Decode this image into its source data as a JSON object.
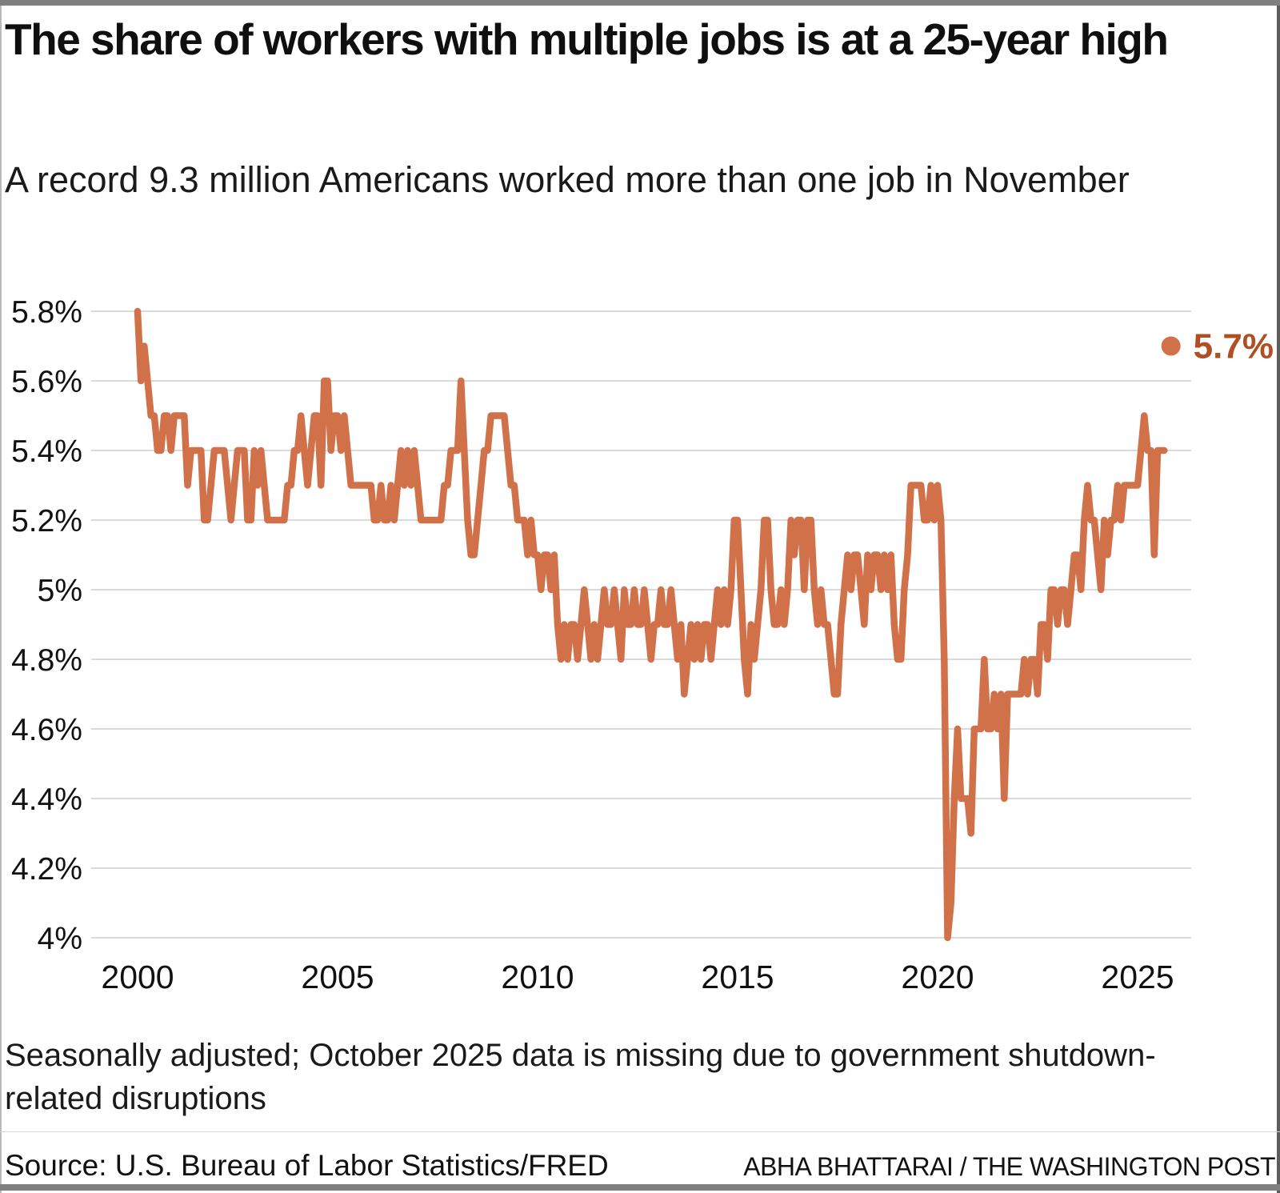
{
  "header": {
    "title": "The share of workers with multiple jobs is at a 25-year high",
    "subtitle": "A record 9.3 million Americans worked more than one job in November"
  },
  "notes": {
    "footnote": "Seasonally adjusted; October 2025 data is missing due to government shutdown-related disruptions",
    "source": "Source: U.S. Bureau of Labor Statistics/FRED",
    "credit": "ABHA BHATTARAI / THE WASHINGTON POST"
  },
  "chart_data": {
    "type": "line",
    "series_name": "Multiple jobholders as a share of employed workers",
    "unit": "percent",
    "frequency": "monthly",
    "start": "2000-01",
    "end": "2025-11",
    "missing_months": [
      "2025-10"
    ],
    "grid": true,
    "legend_position": "none",
    "x_tick_years": [
      2000,
      2005,
      2010,
      2015,
      2020,
      2025
    ],
    "y_tick_values": [
      5.8,
      5.6,
      5.4,
      5.2,
      5.0,
      4.8,
      4.6,
      4.4,
      4.2,
      4.0
    ],
    "y_tick_labels": [
      "5.8%",
      "5.6%",
      "5.4%",
      "5.2%",
      "5%",
      "4.8%",
      "4.6%",
      "4.4%",
      "4.2%",
      "4%"
    ],
    "ylim": [
      4.0,
      5.8
    ],
    "line_color": "#D1714A",
    "grid_color": "#dadada",
    "axis_text_color": "#111111",
    "end_point": {
      "date": "2025-11",
      "value": 5.7,
      "label": "5.7%",
      "label_color": "#B04F22"
    },
    "values": [
      5.8,
      5.6,
      5.7,
      5.6,
      5.5,
      5.5,
      5.4,
      5.4,
      5.5,
      5.5,
      5.4,
      5.5,
      5.5,
      5.5,
      5.5,
      5.3,
      5.4,
      5.4,
      5.4,
      5.4,
      5.2,
      5.2,
      5.3,
      5.4,
      5.4,
      5.4,
      5.4,
      5.3,
      5.2,
      5.3,
      5.4,
      5.4,
      5.4,
      5.2,
      5.2,
      5.4,
      5.3,
      5.4,
      5.3,
      5.2,
      5.2,
      5.2,
      5.2,
      5.2,
      5.2,
      5.3,
      5.3,
      5.4,
      5.4,
      5.5,
      5.4,
      5.3,
      5.4,
      5.5,
      5.5,
      5.3,
      5.6,
      5.6,
      5.4,
      5.5,
      5.5,
      5.4,
      5.5,
      5.4,
      5.3,
      5.3,
      5.3,
      5.3,
      5.3,
      5.3,
      5.3,
      5.2,
      5.2,
      5.3,
      5.2,
      5.2,
      5.3,
      5.2,
      5.3,
      5.4,
      5.3,
      5.4,
      5.3,
      5.4,
      5.3,
      5.2,
      5.2,
      5.2,
      5.2,
      5.2,
      5.2,
      5.2,
      5.3,
      5.3,
      5.4,
      5.4,
      5.4,
      5.6,
      5.4,
      5.2,
      5.1,
      5.1,
      5.2,
      5.3,
      5.4,
      5.4,
      5.5,
      5.5,
      5.5,
      5.5,
      5.5,
      5.4,
      5.3,
      5.3,
      5.2,
      5.2,
      5.2,
      5.1,
      5.2,
      5.1,
      5.1,
      5.0,
      5.1,
      5.1,
      5.0,
      5.1,
      4.9,
      4.8,
      4.9,
      4.8,
      4.9,
      4.9,
      4.8,
      4.9,
      5.0,
      4.9,
      4.8,
      4.9,
      4.8,
      4.9,
      5.0,
      4.9,
      4.9,
      5.0,
      4.9,
      4.8,
      5.0,
      4.9,
      4.9,
      5.0,
      4.9,
      4.9,
      5.0,
      4.9,
      4.8,
      4.9,
      4.9,
      5.0,
      4.9,
      4.9,
      5.0,
      4.9,
      4.8,
      4.9,
      4.7,
      4.8,
      4.9,
      4.8,
      4.9,
      4.8,
      4.9,
      4.9,
      4.8,
      4.9,
      5.0,
      4.9,
      5.0,
      4.9,
      5.0,
      5.2,
      5.2,
      5.0,
      4.8,
      4.7,
      4.9,
      4.8,
      4.9,
      5.0,
      5.2,
      5.2,
      5.0,
      4.9,
      4.9,
      5.0,
      4.9,
      5.0,
      5.2,
      5.1,
      5.2,
      5.2,
      5.0,
      5.2,
      5.2,
      5.0,
      4.9,
      5.0,
      4.9,
      4.9,
      4.8,
      4.7,
      4.7,
      4.9,
      5.0,
      5.1,
      5.0,
      5.1,
      5.1,
      5.0,
      4.9,
      5.1,
      5.0,
      5.1,
      5.1,
      5.0,
      5.1,
      5.0,
      5.1,
      4.9,
      4.8,
      4.8,
      5.0,
      5.1,
      5.3,
      5.3,
      5.3,
      5.3,
      5.2,
      5.2,
      5.3,
      5.2,
      5.3,
      5.2,
      4.8,
      4.0,
      4.1,
      4.4,
      4.6,
      4.4,
      4.4,
      4.4,
      4.3,
      4.6,
      4.6,
      4.6,
      4.8,
      4.6,
      4.6,
      4.7,
      4.6,
      4.7,
      4.4,
      4.7,
      4.7,
      4.7,
      4.7,
      4.7,
      4.8,
      4.7,
      4.8,
      4.8,
      4.7,
      4.9,
      4.9,
      4.8,
      5.0,
      5.0,
      4.9,
      5.0,
      5.0,
      4.9,
      5.0,
      5.1,
      5.1,
      5.0,
      5.2,
      5.3,
      5.2,
      5.2,
      5.1,
      5.0,
      5.2,
      5.1,
      5.2,
      5.2,
      5.3,
      5.2,
      5.3,
      5.3,
      5.3,
      5.3,
      5.3,
      5.4,
      5.5,
      5.4,
      5.4,
      5.1,
      5.4,
      5.4,
      5.4,
      null,
      5.7
    ]
  }
}
